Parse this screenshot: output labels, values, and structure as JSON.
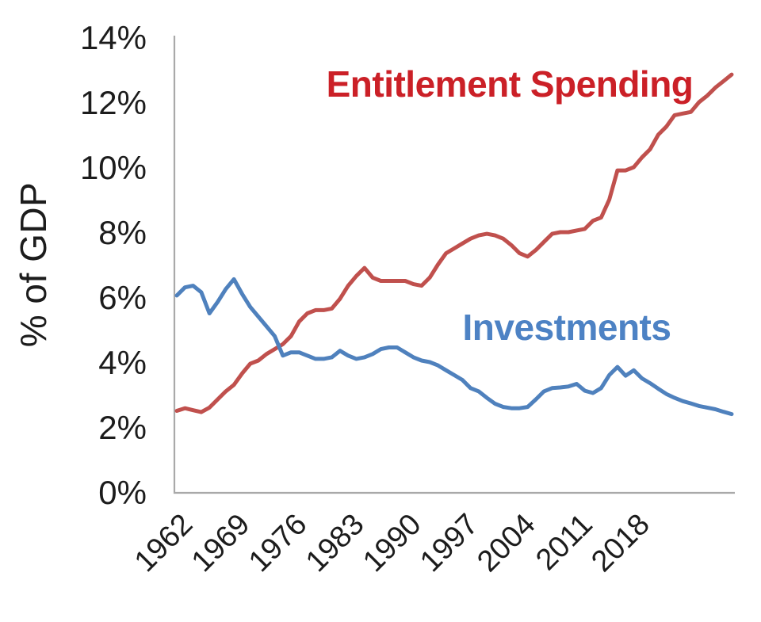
{
  "chart_data": {
    "type": "line",
    "title": "",
    "xlabel": "",
    "ylabel": "% of GDP",
    "ylim": [
      0,
      14
    ],
    "xlim": [
      1962,
      2030
    ],
    "grid": false,
    "legend_position": "inline-annotations",
    "axis_color": "#a9a9a9",
    "text_color": "#1c1c1c",
    "y_ticks": [
      {
        "value": 0,
        "label": "0%"
      },
      {
        "value": 2,
        "label": "2%"
      },
      {
        "value": 4,
        "label": "4%"
      },
      {
        "value": 6,
        "label": "6%"
      },
      {
        "value": 8,
        "label": "8%"
      },
      {
        "value": 10,
        "label": "10%"
      },
      {
        "value": 12,
        "label": "12%"
      },
      {
        "value": 14,
        "label": "14%"
      }
    ],
    "x_ticks": [
      {
        "value": 1962,
        "label": "1962"
      },
      {
        "value": 1969,
        "label": "1969"
      },
      {
        "value": 1976,
        "label": "1976"
      },
      {
        "value": 1983,
        "label": "1983"
      },
      {
        "value": 1990,
        "label": "1990"
      },
      {
        "value": 1997,
        "label": "1997"
      },
      {
        "value": 2004,
        "label": "2004"
      },
      {
        "value": 2011,
        "label": "2011"
      },
      {
        "value": 2018,
        "label": "2018"
      }
    ],
    "years": [
      1962,
      1963,
      1964,
      1965,
      1966,
      1967,
      1968,
      1969,
      1970,
      1971,
      1972,
      1973,
      1974,
      1975,
      1976,
      1977,
      1978,
      1979,
      1980,
      1981,
      1982,
      1983,
      1984,
      1985,
      1986,
      1987,
      1988,
      1989,
      1990,
      1991,
      1992,
      1993,
      1994,
      1995,
      1996,
      1997,
      1998,
      1999,
      2000,
      2001,
      2002,
      2003,
      2004,
      2005,
      2006,
      2007,
      2008,
      2009,
      2010,
      2011,
      2012,
      2013,
      2014,
      2015,
      2016,
      2017,
      2018,
      2019,
      2020,
      2021,
      2022,
      2023,
      2024,
      2025,
      2026,
      2027,
      2028,
      2029,
      2030
    ],
    "series": [
      {
        "name": "Entitlement Spending",
        "color": "#c0504d",
        "label_color": "#cb2027",
        "values": [
          2.5,
          2.58,
          2.52,
          2.46,
          2.6,
          2.85,
          3.1,
          3.3,
          3.65,
          3.95,
          4.05,
          4.25,
          4.4,
          4.55,
          4.8,
          5.25,
          5.5,
          5.6,
          5.6,
          5.65,
          5.95,
          6.35,
          6.65,
          6.9,
          6.6,
          6.5,
          6.5,
          6.5,
          6.5,
          6.4,
          6.35,
          6.6,
          7.0,
          7.35,
          7.5,
          7.65,
          7.8,
          7.9,
          7.95,
          7.9,
          7.8,
          7.6,
          7.35,
          7.25,
          7.45,
          7.7,
          7.95,
          8.0,
          8.0,
          8.05,
          8.1,
          8.35,
          8.45,
          9.0,
          9.9,
          9.9,
          10.0,
          10.3,
          10.55,
          11.0,
          11.25,
          11.6,
          11.65,
          11.7,
          12.0,
          12.2,
          12.45,
          12.65,
          12.85
        ]
      },
      {
        "name": "Investments",
        "color": "#4f81bd",
        "label_color": "#4d82c4",
        "values": [
          6.05,
          6.3,
          6.35,
          6.15,
          5.5,
          5.85,
          6.25,
          6.55,
          6.1,
          5.7,
          5.4,
          5.1,
          4.8,
          4.2,
          4.3,
          4.3,
          4.2,
          4.1,
          4.1,
          4.15,
          4.35,
          4.2,
          4.1,
          4.15,
          4.25,
          4.4,
          4.45,
          4.45,
          4.3,
          4.15,
          4.05,
          4.0,
          3.9,
          3.75,
          3.6,
          3.45,
          3.2,
          3.1,
          2.9,
          2.72,
          2.62,
          2.58,
          2.58,
          2.62,
          2.85,
          3.1,
          3.2,
          3.22,
          3.25,
          3.33,
          3.12,
          3.05,
          3.2,
          3.6,
          3.85,
          3.58,
          3.75,
          3.5,
          3.35,
          3.18,
          3.02,
          2.9,
          2.8,
          2.73,
          2.65,
          2.6,
          2.55,
          2.47,
          2.4
        ]
      }
    ]
  }
}
